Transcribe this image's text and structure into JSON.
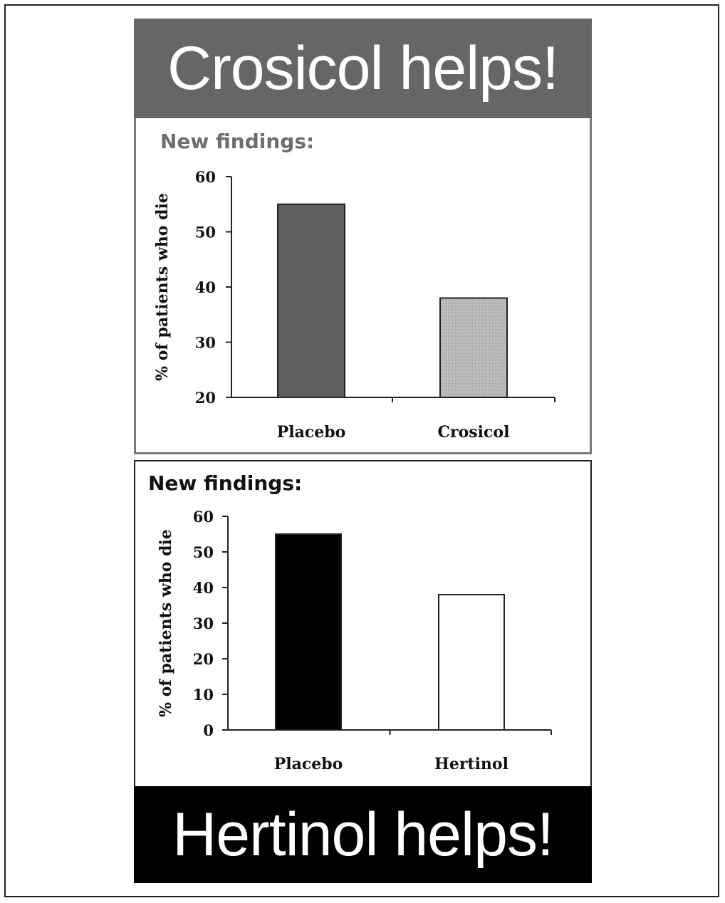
{
  "top_banner": {
    "title": "Crosicol helps!",
    "background": "#666666"
  },
  "bottom_banner": {
    "title": "Hertinol helps!",
    "background": "#000000"
  },
  "chart_data": [
    {
      "type": "bar",
      "heading": "New findings:",
      "heading_color": "#6e6e6e",
      "ylabel": "% of patients who die",
      "categories": [
        "Placebo",
        "Crosicol"
      ],
      "values": [
        55,
        38
      ],
      "ylim": [
        20,
        60
      ],
      "yticks": [
        20,
        30,
        40,
        50,
        60
      ],
      "bar_colors": [
        "#5f5f5f",
        "#bdbdbd"
      ],
      "grid": false
    },
    {
      "type": "bar",
      "heading": "New findings:",
      "heading_color": "#111111",
      "ylabel": "% of patients who die",
      "categories": [
        "Placebo",
        "Hertinol"
      ],
      "values": [
        55,
        38
      ],
      "ylim": [
        0,
        60
      ],
      "yticks": [
        0,
        10,
        20,
        30,
        40,
        50,
        60
      ],
      "bar_colors": [
        "#000000",
        "#ffffff"
      ],
      "grid": false
    }
  ]
}
